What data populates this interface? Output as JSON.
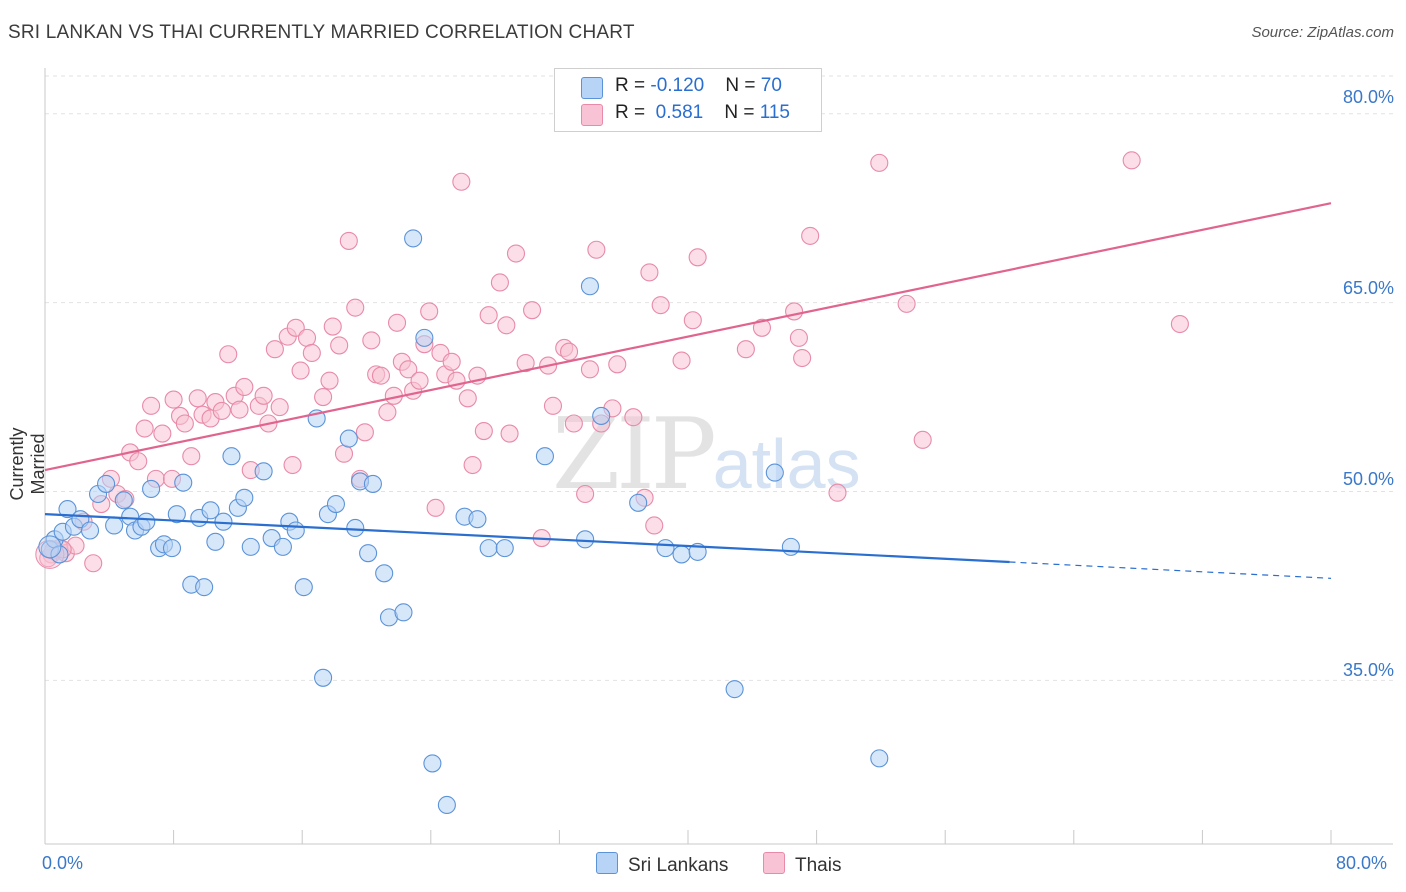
{
  "header": {
    "title": "SRI LANKAN VS THAI CURRENTLY MARRIED CORRELATION CHART",
    "source": "Source: ZipAtlas.com"
  },
  "watermark": {
    "zip": "ZIP",
    "atlas": "atlas"
  },
  "legend": {
    "rows": [
      {
        "r_label": "R = ",
        "r_value": "-0.120",
        "n_label": "N = ",
        "n_value": "70"
      },
      {
        "r_label": "R = ",
        "r_value": " 0.581",
        "n_label": "N = ",
        "n_value": "115"
      }
    ]
  },
  "colors": {
    "blue_fill": "#b7d3f5",
    "blue_stroke": "#5b93d8",
    "blue_line": "#2a6ecf",
    "pink_fill": "#f8c3d4",
    "pink_stroke": "#e88aa8",
    "pink_line": "#e0648f",
    "axis_text": "#3a78c9",
    "grid": "#e2e2e2"
  },
  "chart_data": {
    "type": "scatter",
    "title": "SRI LANKAN VS THAI CURRENTLY MARRIED CORRELATION CHART",
    "xlabel": "",
    "ylabel": "Currently Married",
    "xlim": [
      0,
      80
    ],
    "ylim": [
      22,
      83
    ],
    "x_tick_labels": [
      "0.0%",
      "80.0%"
    ],
    "y_ticks": [
      35,
      50,
      65,
      80
    ],
    "y_tick_labels": [
      "35.0%",
      "50.0%",
      "65.0%",
      "80.0%"
    ],
    "series": [
      {
        "name": "Sri Lankans",
        "R": -0.12,
        "N": 70,
        "trend": {
          "x0": 0,
          "y0": 48.2,
          "x1": 60,
          "y1": 44.4,
          "dash_to_x": 80,
          "dash_to_y": 43.1
        },
        "points": [
          [
            0.3,
            45.4
          ],
          [
            0.6,
            46.2
          ],
          [
            0.9,
            45.0
          ],
          [
            1.1,
            46.8
          ],
          [
            1.4,
            48.6
          ],
          [
            1.8,
            47.2
          ],
          [
            2.2,
            47.8
          ],
          [
            2.8,
            46.9
          ],
          [
            3.3,
            49.8
          ],
          [
            3.8,
            50.6
          ],
          [
            4.3,
            47.3
          ],
          [
            4.9,
            49.3
          ],
          [
            5.3,
            48.0
          ],
          [
            5.6,
            46.9
          ],
          [
            6.0,
            47.2
          ],
          [
            6.3,
            47.6
          ],
          [
            6.6,
            50.2
          ],
          [
            7.1,
            45.5
          ],
          [
            7.4,
            45.8
          ],
          [
            7.9,
            45.5
          ],
          [
            8.2,
            48.2
          ],
          [
            8.6,
            50.7
          ],
          [
            9.1,
            42.6
          ],
          [
            9.6,
            47.9
          ],
          [
            9.9,
            42.4
          ],
          [
            10.3,
            48.5
          ],
          [
            10.6,
            46.0
          ],
          [
            11.1,
            47.6
          ],
          [
            11.6,
            52.8
          ],
          [
            12.0,
            48.7
          ],
          [
            12.4,
            49.5
          ],
          [
            12.8,
            45.6
          ],
          [
            13.6,
            51.6
          ],
          [
            14.1,
            46.3
          ],
          [
            14.8,
            45.6
          ],
          [
            15.2,
            47.6
          ],
          [
            15.6,
            46.9
          ],
          [
            16.1,
            42.4
          ],
          [
            16.9,
            55.8
          ],
          [
            17.3,
            35.2
          ],
          [
            17.6,
            48.2
          ],
          [
            18.1,
            49.0
          ],
          [
            18.9,
            54.2
          ],
          [
            19.3,
            47.1
          ],
          [
            19.6,
            50.8
          ],
          [
            20.1,
            45.1
          ],
          [
            20.4,
            50.6
          ],
          [
            21.1,
            43.5
          ],
          [
            21.4,
            40.0
          ],
          [
            22.3,
            40.4
          ],
          [
            22.9,
            70.1
          ],
          [
            23.6,
            62.2
          ],
          [
            24.1,
            28.4
          ],
          [
            25.0,
            25.1
          ],
          [
            26.1,
            48.0
          ],
          [
            26.9,
            47.8
          ],
          [
            27.6,
            45.5
          ],
          [
            28.6,
            45.5
          ],
          [
            31.1,
            52.8
          ],
          [
            33.6,
            46.2
          ],
          [
            33.9,
            66.3
          ],
          [
            34.6,
            56.0
          ],
          [
            36.9,
            49.1
          ],
          [
            38.6,
            45.5
          ],
          [
            39.6,
            45.0
          ],
          [
            40.6,
            45.2
          ],
          [
            42.9,
            34.3
          ],
          [
            45.4,
            51.5
          ],
          [
            46.4,
            45.6
          ],
          [
            51.9,
            28.8
          ]
        ]
      },
      {
        "name": "Thais",
        "R": 0.581,
        "N": 115,
        "trend": {
          "x0": 0,
          "y0": 51.7,
          "x1": 80,
          "y1": 72.9
        },
        "points": [
          [
            0.4,
            45.0
          ],
          [
            0.9,
            45.5
          ],
          [
            1.3,
            45.1
          ],
          [
            1.9,
            45.7
          ],
          [
            2.4,
            47.6
          ],
          [
            3.0,
            44.3
          ],
          [
            3.5,
            49.0
          ],
          [
            4.1,
            51.0
          ],
          [
            4.5,
            49.8
          ],
          [
            5.0,
            49.4
          ],
          [
            5.3,
            53.1
          ],
          [
            5.8,
            52.4
          ],
          [
            6.2,
            55.0
          ],
          [
            6.6,
            56.8
          ],
          [
            6.9,
            51.0
          ],
          [
            7.3,
            54.6
          ],
          [
            7.9,
            51.0
          ],
          [
            8.0,
            57.3
          ],
          [
            8.4,
            56.0
          ],
          [
            8.7,
            55.4
          ],
          [
            9.1,
            52.8
          ],
          [
            9.5,
            57.4
          ],
          [
            9.8,
            56.1
          ],
          [
            10.3,
            55.8
          ],
          [
            10.6,
            57.1
          ],
          [
            11.0,
            56.4
          ],
          [
            11.4,
            60.9
          ],
          [
            11.8,
            57.6
          ],
          [
            12.1,
            56.5
          ],
          [
            12.4,
            58.3
          ],
          [
            12.8,
            51.7
          ],
          [
            13.3,
            56.8
          ],
          [
            13.6,
            57.6
          ],
          [
            13.9,
            55.4
          ],
          [
            14.3,
            61.3
          ],
          [
            14.6,
            56.7
          ],
          [
            15.1,
            62.3
          ],
          [
            15.4,
            52.1
          ],
          [
            15.6,
            63.0
          ],
          [
            15.9,
            59.6
          ],
          [
            16.3,
            62.2
          ],
          [
            16.6,
            61.0
          ],
          [
            17.3,
            57.5
          ],
          [
            17.7,
            58.8
          ],
          [
            17.9,
            63.1
          ],
          [
            18.3,
            61.6
          ],
          [
            18.6,
            53.0
          ],
          [
            18.9,
            69.9
          ],
          [
            19.3,
            64.6
          ],
          [
            19.6,
            51.0
          ],
          [
            19.9,
            54.7
          ],
          [
            20.3,
            62.0
          ],
          [
            20.6,
            59.3
          ],
          [
            20.9,
            59.2
          ],
          [
            21.3,
            56.3
          ],
          [
            21.7,
            57.6
          ],
          [
            21.9,
            63.4
          ],
          [
            22.2,
            60.3
          ],
          [
            22.6,
            59.7
          ],
          [
            22.9,
            58.0
          ],
          [
            23.3,
            58.8
          ],
          [
            23.6,
            61.7
          ],
          [
            23.9,
            64.3
          ],
          [
            24.3,
            48.7
          ],
          [
            24.6,
            61.0
          ],
          [
            24.9,
            59.3
          ],
          [
            25.3,
            60.3
          ],
          [
            25.6,
            58.8
          ],
          [
            25.9,
            74.6
          ],
          [
            26.3,
            57.4
          ],
          [
            26.6,
            52.1
          ],
          [
            26.9,
            59.2
          ],
          [
            27.3,
            54.8
          ],
          [
            27.6,
            64.0
          ],
          [
            28.3,
            66.6
          ],
          [
            28.7,
            63.2
          ],
          [
            28.9,
            54.6
          ],
          [
            29.3,
            68.9
          ],
          [
            29.9,
            60.2
          ],
          [
            30.3,
            64.4
          ],
          [
            30.9,
            46.3
          ],
          [
            31.3,
            60.0
          ],
          [
            31.6,
            56.8
          ],
          [
            32.3,
            61.4
          ],
          [
            32.6,
            61.1
          ],
          [
            32.9,
            55.4
          ],
          [
            33.6,
            49.8
          ],
          [
            33.9,
            59.7
          ],
          [
            34.3,
            69.2
          ],
          [
            34.6,
            55.4
          ],
          [
            35.3,
            56.6
          ],
          [
            35.6,
            60.1
          ],
          [
            36.6,
            55.9
          ],
          [
            37.3,
            49.5
          ],
          [
            37.6,
            67.4
          ],
          [
            37.9,
            47.3
          ],
          [
            38.3,
            64.8
          ],
          [
            39.6,
            60.4
          ],
          [
            40.3,
            63.6
          ],
          [
            40.6,
            68.6
          ],
          [
            43.6,
            61.3
          ],
          [
            44.6,
            63.0
          ],
          [
            46.6,
            64.3
          ],
          [
            46.9,
            62.2
          ],
          [
            47.1,
            60.6
          ],
          [
            47.6,
            70.3
          ],
          [
            49.3,
            49.9
          ],
          [
            51.9,
            76.1
          ],
          [
            53.6,
            64.9
          ],
          [
            54.6,
            54.1
          ],
          [
            67.6,
            76.3
          ],
          [
            70.6,
            63.3
          ],
          [
            0.2,
            44.7
          ],
          [
            0.5,
            45.3
          ],
          [
            1.1,
            45.4
          ]
        ]
      }
    ]
  },
  "axes": {
    "x_left_label": "0.0%",
    "x_right_label": "80.0%"
  }
}
